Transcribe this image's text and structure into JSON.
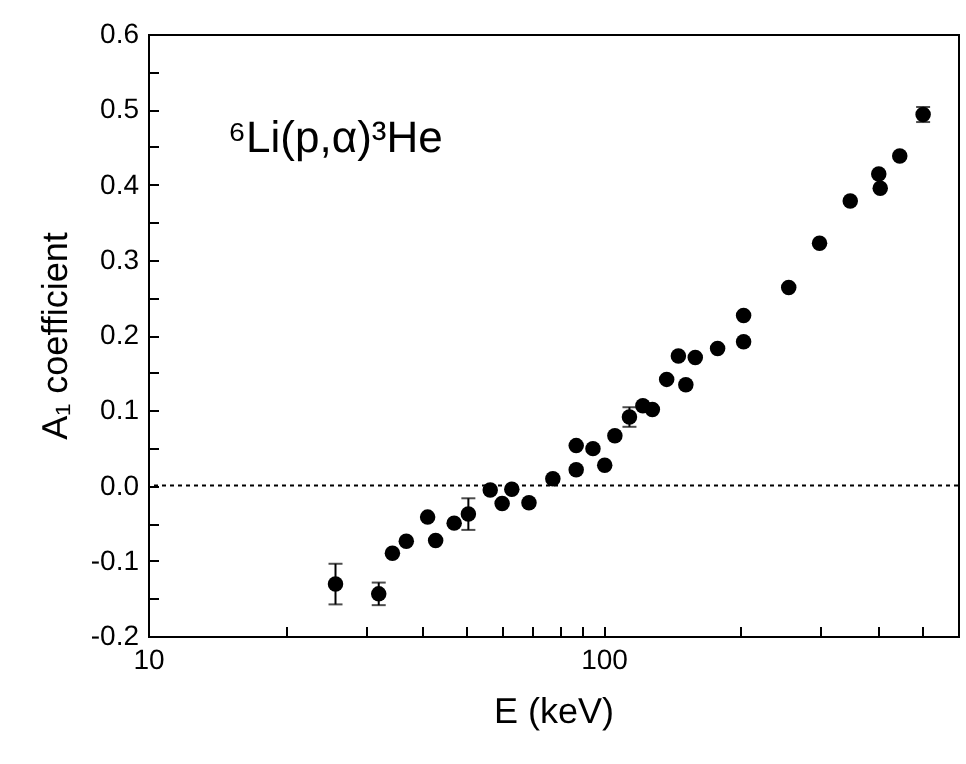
{
  "chart_data": {
    "type": "scatter",
    "xlabel": "E (keV)",
    "ylabel": "A₁ coefficient",
    "annotations": [
      "⁶Li(p,α)³He"
    ],
    "log": "x",
    "marker": "circle",
    "grid": false,
    "xlim": [
      10,
      600
    ],
    "ylim": [
      -0.2,
      0.6
    ],
    "xticks": [
      10,
      {
        "value": 20,
        "label": null
      },
      {
        "value": 30,
        "label": null
      },
      {
        "value": 40,
        "label": null
      },
      {
        "value": 50,
        "label": null
      },
      {
        "value": 60,
        "label": null
      },
      {
        "value": 70,
        "label": null
      },
      {
        "value": 80,
        "label": null
      },
      {
        "value": 90,
        "label": null
      },
      100,
      {
        "value": 200,
        "label": null
      },
      {
        "value": 300,
        "label": null
      },
      {
        "value": 400,
        "label": null
      },
      {
        "value": 500,
        "label": null
      }
    ],
    "yticks": [
      -0.2,
      {
        "value": -0.15,
        "label": null
      },
      -0.1,
      {
        "value": -0.05,
        "label": null
      },
      {
        "value": 0,
        "label": "0.0"
      },
      {
        "value": 0.05,
        "label": null
      },
      0.1,
      {
        "value": 0.15,
        "label": null
      },
      0.2,
      {
        "value": 0.25,
        "label": null
      },
      0.3,
      {
        "value": 0.35,
        "label": null
      },
      0.4,
      {
        "value": 0.45,
        "label": null
      },
      0.5,
      {
        "value": 0.55,
        "label": null
      },
      0.6
    ],
    "ref_lines": [
      {
        "axis": "y",
        "value": 0,
        "line_style": "dotted",
        "color": "#000000"
      }
    ],
    "series": [
      {
        "color": "#000000",
        "x": [
          25.8,
          32.1,
          34.4,
          36.9,
          41.1,
          42.8,
          47.0,
          50.5,
          56.4,
          59.9,
          62.9,
          68.6,
          77.4,
          87.1,
          87.1,
          94.8,
          100.6,
          105.9,
          114,
          122,
          128,
          137.6,
          146,
          151.6,
          159,
          178,
          203,
          203,
          255,
          298,
          348,
          402,
          405,
          447,
          503
        ],
        "values": [
          -0.131,
          -0.144,
          -0.09,
          -0.074,
          -0.042,
          -0.073,
          -0.05,
          -0.038,
          -0.006,
          -0.024,
          -0.005,
          -0.023,
          0.009,
          0.053,
          0.021,
          0.049,
          0.027,
          0.066,
          0.091,
          0.106,
          0.101,
          0.141,
          0.172,
          0.134,
          0.17,
          0.182,
          0.226,
          0.191,
          0.263,
          0.322,
          0.378,
          0.414,
          0.395,
          0.438,
          0.493
        ],
        "errors": [
          0.027,
          0.015,
          null,
          null,
          null,
          null,
          null,
          0.021,
          null,
          null,
          null,
          null,
          null,
          null,
          null,
          null,
          null,
          null,
          0.013,
          null,
          null,
          null,
          null,
          null,
          null,
          null,
          null,
          null,
          null,
          null,
          null,
          null,
          null,
          null,
          0.01
        ]
      }
    ]
  }
}
